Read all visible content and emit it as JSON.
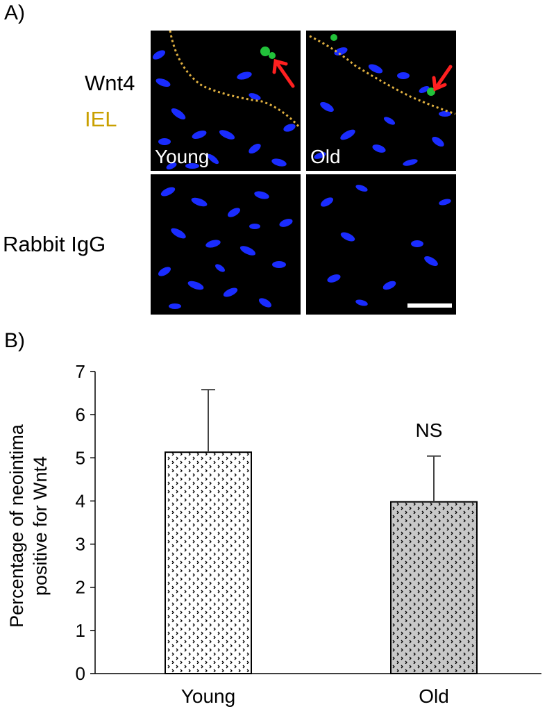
{
  "panel_a": {
    "label": "A)",
    "row_labels": {
      "wnt4": "Wnt4",
      "iel": "IEL",
      "igg": "Rabbit IgG"
    },
    "tile_labels": {
      "young": "Young",
      "old": "Old"
    },
    "colors": {
      "nuclei": "#1a2cff",
      "signal": "#22c23a",
      "iel_line": "#e0b040",
      "arrow": "#ff2020",
      "iel_text": "#c9a000"
    }
  },
  "panel_b": {
    "label": "B)"
  },
  "chart_data": {
    "type": "bar",
    "categories": [
      "Young",
      "Old"
    ],
    "values": [
      5.13,
      3.98
    ],
    "errors": [
      1.45,
      1.06
    ],
    "ylabel_lines": [
      "Percentage of neointima",
      "positive for Wnt4"
    ],
    "ylim": [
      0,
      7
    ],
    "yticks": [
      0,
      1,
      2,
      3,
      4,
      5,
      6,
      7
    ],
    "annotations": [
      {
        "category": "Old",
        "text": "NS"
      }
    ],
    "bar_fills": [
      "#ffffff",
      "#c8c8c8"
    ],
    "grid": false,
    "legend": "none"
  }
}
